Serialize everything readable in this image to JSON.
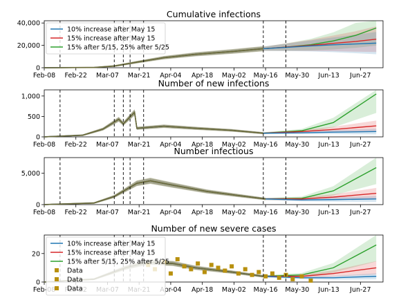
{
  "chart_data": [
    {
      "type": "line",
      "title": "Cumulative infections",
      "ylim": [
        0,
        42000
      ],
      "yticks": [
        0,
        20000,
        40000
      ],
      "ytick_labels": [
        "0",
        "20,000",
        "40,000"
      ],
      "legend": "top-left",
      "series": [
        {
          "name": "10% increase after May 15",
          "color": "#1f77b4",
          "x": [
            "2020-02-08",
            "2020-03-01",
            "2020-03-10",
            "2020-03-20",
            "2020-04-01",
            "2020-04-15",
            "2020-05-01",
            "2020-05-15",
            "2020-05-25",
            "2020-06-05",
            "2020-06-15",
            "2020-06-25",
            "2020-07-04"
          ],
          "values": [
            0,
            200,
            1500,
            5000,
            9000,
            12000,
            14500,
            17000,
            18200,
            19500,
            20500,
            21300,
            22000
          ]
        },
        {
          "name": "15% increase after May 15",
          "color": "#d62728",
          "x": [
            "2020-02-08",
            "2020-03-01",
            "2020-03-10",
            "2020-03-20",
            "2020-04-01",
            "2020-04-15",
            "2020-05-01",
            "2020-05-15",
            "2020-05-25",
            "2020-06-05",
            "2020-06-15",
            "2020-06-25",
            "2020-07-04"
          ],
          "values": [
            0,
            200,
            1500,
            5000,
            9000,
            12000,
            14500,
            17000,
            18400,
            20000,
            21800,
            23500,
            25500
          ]
        },
        {
          "name": "15% after 5/15, 25% after 5/25",
          "color": "#2ca02c",
          "x": [
            "2020-02-08",
            "2020-03-01",
            "2020-03-10",
            "2020-03-20",
            "2020-04-01",
            "2020-04-15",
            "2020-05-01",
            "2020-05-15",
            "2020-05-25",
            "2020-06-05",
            "2020-06-15",
            "2020-06-25",
            "2020-07-04"
          ],
          "values": [
            0,
            200,
            1500,
            5000,
            9000,
            12000,
            14500,
            17000,
            18400,
            20600,
            24000,
            29000,
            35500
          ]
        }
      ]
    },
    {
      "type": "line",
      "title": "Number of new infections",
      "ylim": [
        0,
        1150
      ],
      "yticks": [
        0,
        500,
        1000
      ],
      "ytick_labels": [
        "0",
        "500",
        "1,000"
      ],
      "series": [
        {
          "name": "10% increase after May 15",
          "color": "#1f77b4",
          "x": [
            "2020-02-08",
            "2020-02-25",
            "2020-03-05",
            "2020-03-12",
            "2020-03-14",
            "2020-03-19",
            "2020-03-20",
            "2020-04-01",
            "2020-04-15",
            "2020-05-01",
            "2020-05-15",
            "2020-06-01",
            "2020-06-15",
            "2020-07-04"
          ],
          "values": [
            0,
            40,
            190,
            430,
            320,
            600,
            210,
            260,
            210,
            160,
            90,
            100,
            115,
            130
          ]
        },
        {
          "name": "15% increase after May 15",
          "color": "#d62728",
          "x": [
            "2020-02-08",
            "2020-02-25",
            "2020-03-05",
            "2020-03-12",
            "2020-03-14",
            "2020-03-19",
            "2020-03-20",
            "2020-04-01",
            "2020-04-15",
            "2020-05-01",
            "2020-05-15",
            "2020-06-01",
            "2020-06-15",
            "2020-07-04"
          ],
          "values": [
            0,
            40,
            190,
            430,
            320,
            600,
            210,
            260,
            210,
            160,
            90,
            130,
            180,
            270
          ]
        },
        {
          "name": "15% after 5/15, 25% after 5/25",
          "color": "#2ca02c",
          "x": [
            "2020-02-08",
            "2020-02-25",
            "2020-03-05",
            "2020-03-12",
            "2020-03-14",
            "2020-03-19",
            "2020-03-20",
            "2020-04-01",
            "2020-04-15",
            "2020-05-01",
            "2020-05-15",
            "2020-06-01",
            "2020-06-15",
            "2020-07-04"
          ],
          "values": [
            0,
            40,
            190,
            430,
            320,
            600,
            210,
            260,
            210,
            160,
            90,
            150,
            350,
            1050
          ]
        }
      ]
    },
    {
      "type": "line",
      "title": "Number infectious",
      "ylim": [
        0,
        7500
      ],
      "yticks": [
        0,
        5000
      ],
      "ytick_labels": [
        "0",
        "5,000"
      ],
      "series": [
        {
          "name": "10% increase after May 15",
          "color": "#1f77b4",
          "x": [
            "2020-02-08",
            "2020-03-01",
            "2020-03-10",
            "2020-03-20",
            "2020-03-26",
            "2020-04-05",
            "2020-04-20",
            "2020-05-05",
            "2020-05-16",
            "2020-06-01",
            "2020-06-15",
            "2020-07-04"
          ],
          "values": [
            0,
            250,
            1300,
            3400,
            3800,
            3100,
            2100,
            1400,
            900,
            750,
            800,
            900
          ]
        },
        {
          "name": "15% increase after May 15",
          "color": "#d62728",
          "x": [
            "2020-02-08",
            "2020-03-01",
            "2020-03-10",
            "2020-03-20",
            "2020-03-26",
            "2020-04-05",
            "2020-04-20",
            "2020-05-05",
            "2020-05-16",
            "2020-06-01",
            "2020-06-15",
            "2020-07-04"
          ],
          "values": [
            0,
            250,
            1300,
            3400,
            3800,
            3100,
            2100,
            1400,
            900,
            900,
            1200,
            1800
          ]
        },
        {
          "name": "15% after 5/15, 25% after 5/25",
          "color": "#2ca02c",
          "x": [
            "2020-02-08",
            "2020-03-01",
            "2020-03-10",
            "2020-03-20",
            "2020-03-26",
            "2020-04-05",
            "2020-04-20",
            "2020-05-05",
            "2020-05-16",
            "2020-06-01",
            "2020-06-15",
            "2020-07-04"
          ],
          "values": [
            0,
            250,
            1300,
            3400,
            3800,
            3100,
            2100,
            1400,
            900,
            1000,
            2200,
            5900
          ]
        }
      ]
    },
    {
      "type": "line",
      "title": "Number of new severe cases",
      "ylim": [
        0,
        33
      ],
      "yticks": [
        0,
        20
      ],
      "ytick_labels": [
        "0",
        "20"
      ],
      "legend": "top-left",
      "series": [
        {
          "name": "10% increase after May 15",
          "color": "#1f77b4",
          "x": [
            "2020-02-08",
            "2020-03-01",
            "2020-03-15",
            "2020-03-25",
            "2020-04-05",
            "2020-04-15",
            "2020-05-01",
            "2020-05-15",
            "2020-06-01",
            "2020-06-15",
            "2020-07-04"
          ],
          "values": [
            0,
            2,
            10,
            14,
            13,
            10,
            7,
            4,
            3,
            3,
            4
          ]
        },
        {
          "name": "15% increase after May 15",
          "color": "#d62728",
          "x": [
            "2020-02-08",
            "2020-03-01",
            "2020-03-15",
            "2020-03-25",
            "2020-04-05",
            "2020-04-15",
            "2020-05-01",
            "2020-05-15",
            "2020-06-01",
            "2020-06-15",
            "2020-07-04"
          ],
          "values": [
            0,
            2,
            10,
            14,
            13,
            10,
            7,
            4,
            4,
            6,
            10
          ]
        },
        {
          "name": "15% after 5/15, 25% after 5/25",
          "color": "#2ca02c",
          "x": [
            "2020-02-08",
            "2020-03-01",
            "2020-03-15",
            "2020-03-25",
            "2020-04-05",
            "2020-04-15",
            "2020-05-01",
            "2020-05-15",
            "2020-06-01",
            "2020-06-15",
            "2020-07-04"
          ],
          "values": [
            0,
            2,
            10,
            14,
            13,
            10,
            7,
            4,
            5,
            10,
            26
          ]
        }
      ],
      "data_points": {
        "name": "Data",
        "color": "#b8900e",
        "x": [
          "2020-03-25",
          "2020-03-28",
          "2020-04-01",
          "2020-04-04",
          "2020-04-07",
          "2020-04-10",
          "2020-04-13",
          "2020-04-16",
          "2020-04-19",
          "2020-04-22",
          "2020-04-25",
          "2020-04-28",
          "2020-05-01",
          "2020-05-04",
          "2020-05-07",
          "2020-05-10",
          "2020-05-13",
          "2020-05-16",
          "2020-05-19",
          "2020-05-22",
          "2020-05-25",
          "2020-05-28",
          "2020-06-01",
          "2020-06-05"
        ],
        "values": [
          12,
          9,
          14,
          6,
          16,
          11,
          9,
          13,
          7,
          12,
          10,
          8,
          11,
          6,
          9,
          5,
          7,
          4,
          6,
          3,
          5,
          2,
          4,
          1
        ]
      }
    }
  ],
  "x_axis": {
    "start": "2020-02-08",
    "end": "2020-07-07",
    "tick_dates": [
      "2020-02-08",
      "2020-02-22",
      "2020-03-07",
      "2020-03-21",
      "2020-04-04",
      "2020-04-18",
      "2020-05-02",
      "2020-05-16",
      "2020-05-30",
      "2020-06-13",
      "2020-06-27"
    ],
    "tick_labels": [
      "Feb-08",
      "Feb-22",
      "Mar-07",
      "Mar-21",
      "Apr-04",
      "Apr-18",
      "May-02",
      "May-16",
      "May-30",
      "Jun-13",
      "Jun-27"
    ],
    "dashed_line_dates": [
      "2020-02-15",
      "2020-03-10",
      "2020-03-14",
      "2020-03-17",
      "2020-03-23",
      "2020-05-15",
      "2020-05-25"
    ]
  },
  "colors": {
    "blue": "#1f77b4",
    "red": "#d62728",
    "green": "#2ca02c",
    "fit": "#8a8a5c",
    "data": "#b8900e"
  }
}
